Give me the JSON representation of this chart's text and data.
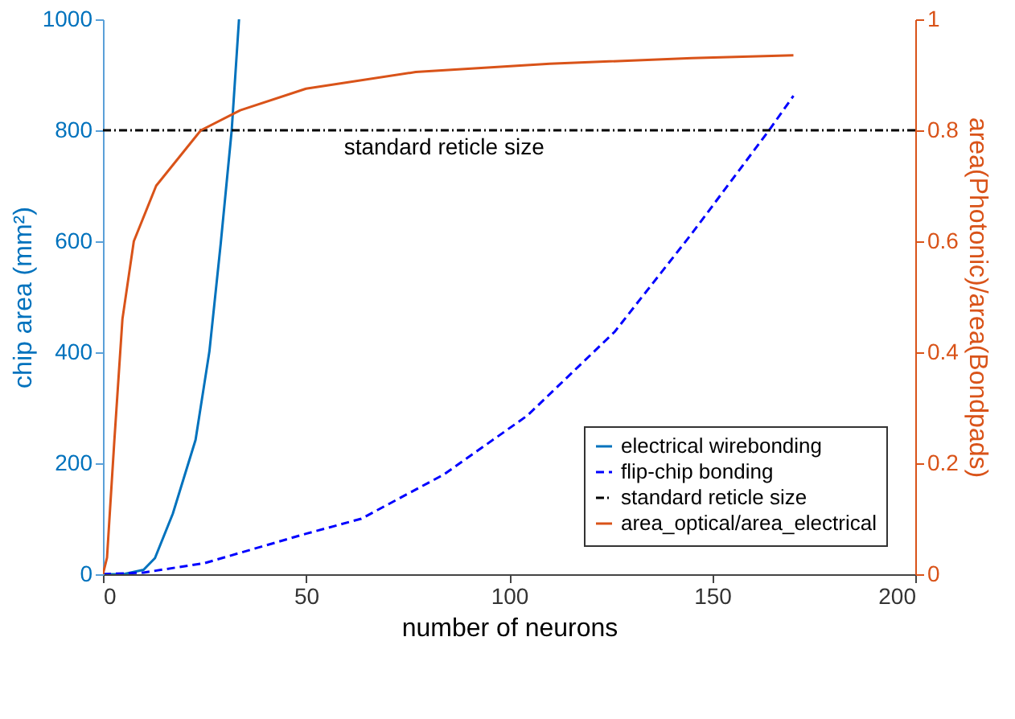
{
  "chart_data": {
    "type": "line",
    "xlabel": "number of neurons",
    "ylabel": "chip area (mm²)",
    "y2label": "area(Photonic)/area(Bondpads)",
    "xlim": [
      0,
      200
    ],
    "xticks": [
      0,
      50,
      100,
      150,
      200
    ],
    "ylim": [
      0,
      1000
    ],
    "yticks": [
      0,
      200,
      400,
      600,
      800,
      1000
    ],
    "y2lim": [
      0,
      1
    ],
    "y2ticks": [
      0,
      0.2,
      0.4,
      0.6,
      0.8,
      1
    ],
    "grid": false,
    "legend": "bottom right",
    "series": [
      {
        "name": "electrical wirebonding",
        "color": "#0072bd",
        "line_style": "solid",
        "x": [
          0,
          5,
          10,
          12.8,
          17.2,
          22.8,
          26.2,
          29,
          31.7,
          33.5
        ],
        "values": [
          0,
          0,
          8,
          29,
          109,
          242,
          401,
          596,
          800,
          1000
        ]
      },
      {
        "name": "flip-chip bonding",
        "color": "#0000ff",
        "line_style": "dashed",
        "x": [
          0,
          10,
          25,
          50,
          63.6,
          84,
          104.5,
          126,
          145,
          164,
          170
        ],
        "values": [
          0,
          3,
          20,
          73,
          100,
          180,
          286,
          437,
          614,
          800,
          862
        ]
      },
      {
        "name": "area_optical/area_electrical",
        "color": "#d95319",
        "line_style": "solid",
        "axis": "y2",
        "x": [
          0,
          1,
          2.8,
          4.8,
          7.6,
          13.1,
          24.1,
          33.8,
          50,
          77,
          110,
          145,
          170
        ],
        "values": [
          0,
          0.03,
          0.24,
          0.46,
          0.6,
          0.7,
          0.8,
          0.836,
          0.875,
          0.905,
          0.92,
          0.93,
          0.935
        ]
      }
    ],
    "ref_lines": [
      {
        "axis": "y",
        "value": 800,
        "label": "standard reticle size",
        "color": "#000000",
        "line_style": "dotted"
      }
    ]
  }
}
